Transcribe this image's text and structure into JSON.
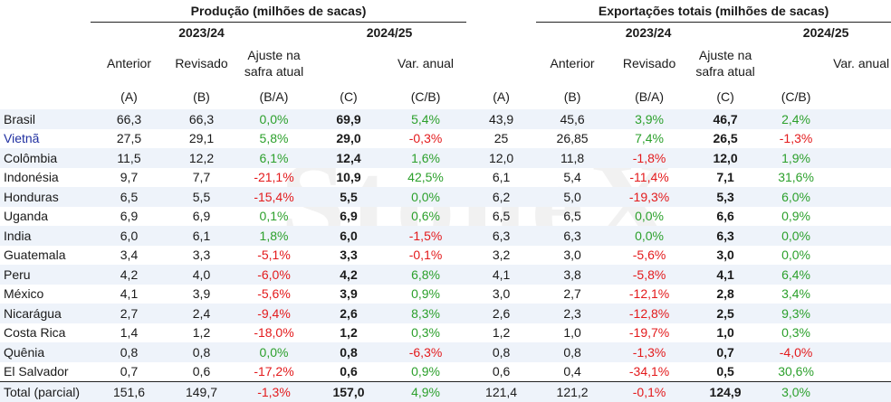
{
  "watermark": "StoneX",
  "groups": {
    "production": "Produção  (milhões de sacas)",
    "exports": "Exportações totais (milhões de sacas)"
  },
  "years": {
    "prev": "2023/24",
    "curr": "2024/25"
  },
  "columns": {
    "anterior": "Anterior",
    "revisado": "Revisado",
    "ajuste": "Ajuste na safra atual",
    "var_anual": "Var. anual",
    "a": "(A)",
    "b": "(B)",
    "ba": "(B/A)",
    "c": "(C)",
    "cb": "(C/B)"
  },
  "rows": [
    {
      "country": "Brasil",
      "p": [
        "66,3",
        "66,3",
        "0,0%",
        "69,9",
        "5,4%"
      ],
      "e": [
        "43,9",
        "45,6",
        "3,9%",
        "46,7",
        "2,4%"
      ]
    },
    {
      "country": "Vietnã",
      "p": [
        "27,5",
        "29,1",
        "5,8%",
        "29,0",
        "-0,3%"
      ],
      "e": [
        "25",
        "26,85",
        "7,4%",
        "26,5",
        "-1,3%"
      ]
    },
    {
      "country": "Colômbia",
      "p": [
        "11,5",
        "12,2",
        "6,1%",
        "12,4",
        "1,6%"
      ],
      "e": [
        "12,0",
        "11,8",
        "-1,8%",
        "12,0",
        "1,9%"
      ]
    },
    {
      "country": "Indonésia",
      "p": [
        "9,7",
        "7,7",
        "-21,1%",
        "10,9",
        "42,5%"
      ],
      "e": [
        "6,1",
        "5,4",
        "-11,4%",
        "7,1",
        "31,6%"
      ]
    },
    {
      "country": "Honduras",
      "p": [
        "6,5",
        "5,5",
        "-15,4%",
        "5,5",
        "0,0%"
      ],
      "e": [
        "6,2",
        "5,0",
        "-19,3%",
        "5,3",
        "6,0%"
      ]
    },
    {
      "country": "Uganda",
      "p": [
        "6,9",
        "6,9",
        "0,1%",
        "6,9",
        "0,6%"
      ],
      "e": [
        "6,5",
        "6,5",
        "0,0%",
        "6,6",
        "0,9%"
      ]
    },
    {
      "country": "India",
      "p": [
        "6,0",
        "6,1",
        "1,8%",
        "6,0",
        "-1,5%"
      ],
      "e": [
        "6,3",
        "6,3",
        "0,0%",
        "6,3",
        "0,0%"
      ]
    },
    {
      "country": "Guatemala",
      "p": [
        "3,4",
        "3,3",
        "-5,1%",
        "3,3",
        "-0,1%"
      ],
      "e": [
        "3,2",
        "3,0",
        "-5,6%",
        "3,0",
        "0,0%"
      ]
    },
    {
      "country": "Peru",
      "p": [
        "4,2",
        "4,0",
        "-6,0%",
        "4,2",
        "6,8%"
      ],
      "e": [
        "4,1",
        "3,8",
        "-5,8%",
        "4,1",
        "6,4%"
      ]
    },
    {
      "country": "México",
      "p": [
        "4,1",
        "3,9",
        "-5,6%",
        "3,9",
        "0,9%"
      ],
      "e": [
        "3,0",
        "2,7",
        "-12,1%",
        "2,8",
        "3,4%"
      ]
    },
    {
      "country": "Nicarágua",
      "p": [
        "2,7",
        "2,4",
        "-9,4%",
        "2,6",
        "8,3%"
      ],
      "e": [
        "2,6",
        "2,3",
        "-12,8%",
        "2,5",
        "9,3%"
      ]
    },
    {
      "country": "Costa Rica",
      "p": [
        "1,4",
        "1,2",
        "-18,0%",
        "1,2",
        "0,3%"
      ],
      "e": [
        "1,2",
        "1,0",
        "-19,7%",
        "1,0",
        "0,3%"
      ]
    },
    {
      "country": "Quênia",
      "p": [
        "0,8",
        "0,8",
        "0,0%",
        "0,8",
        "-6,3%"
      ],
      "e": [
        "0,8",
        "0,8",
        "-1,3%",
        "0,7",
        "-4,0%"
      ]
    },
    {
      "country": "El Salvador",
      "p": [
        "0,7",
        "0,6",
        "-17,2%",
        "0,6",
        "0,9%"
      ],
      "e": [
        "0,6",
        "0,4",
        "-34,1%",
        "0,5",
        "30,6%"
      ]
    },
    {
      "country": "Total (parcial)",
      "p": [
        "151,6",
        "149,7",
        "-1,3%",
        "157,0",
        "4,9%"
      ],
      "e": [
        "121,4",
        "121,2",
        "-0,1%",
        "124,9",
        "3,0%"
      ]
    }
  ]
}
